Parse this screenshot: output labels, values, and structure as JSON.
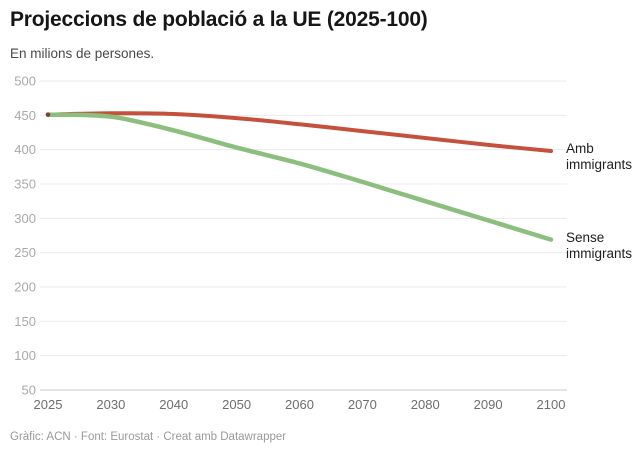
{
  "chart_data": {
    "type": "line",
    "title": "Projeccions de població a la UE (2025-100)",
    "subtitle": "En milions de persones.",
    "footer": "Gràfic: ACN · Font: Eurostat · Creat amb Datawrapper",
    "categories": [
      "2025",
      "2030",
      "2040",
      "2050",
      "2060",
      "2070",
      "2080",
      "2090",
      "2100"
    ],
    "series": [
      {
        "name": "Amb immigrants",
        "label_lines": [
          "Amb",
          "immigrants"
        ],
        "color": "#c4513b",
        "values": [
          451,
          453,
          452,
          446,
          437,
          427,
          417,
          407,
          398
        ]
      },
      {
        "name": "Sense immigrants",
        "label_lines": [
          "Sense",
          "immigrants"
        ],
        "color": "#8cbe7d",
        "values": [
          451,
          448,
          428,
          403,
          380,
          353,
          325,
          297,
          269
        ]
      }
    ],
    "y_ticks": [
      500,
      450,
      400,
      350,
      300,
      250,
      200,
      150,
      100,
      50
    ],
    "ylim": [
      50,
      500
    ],
    "xlabel": "",
    "ylabel": "",
    "grid": true,
    "legend_position": "right-of-line-end",
    "start_dot_color": "#7c4334"
  }
}
